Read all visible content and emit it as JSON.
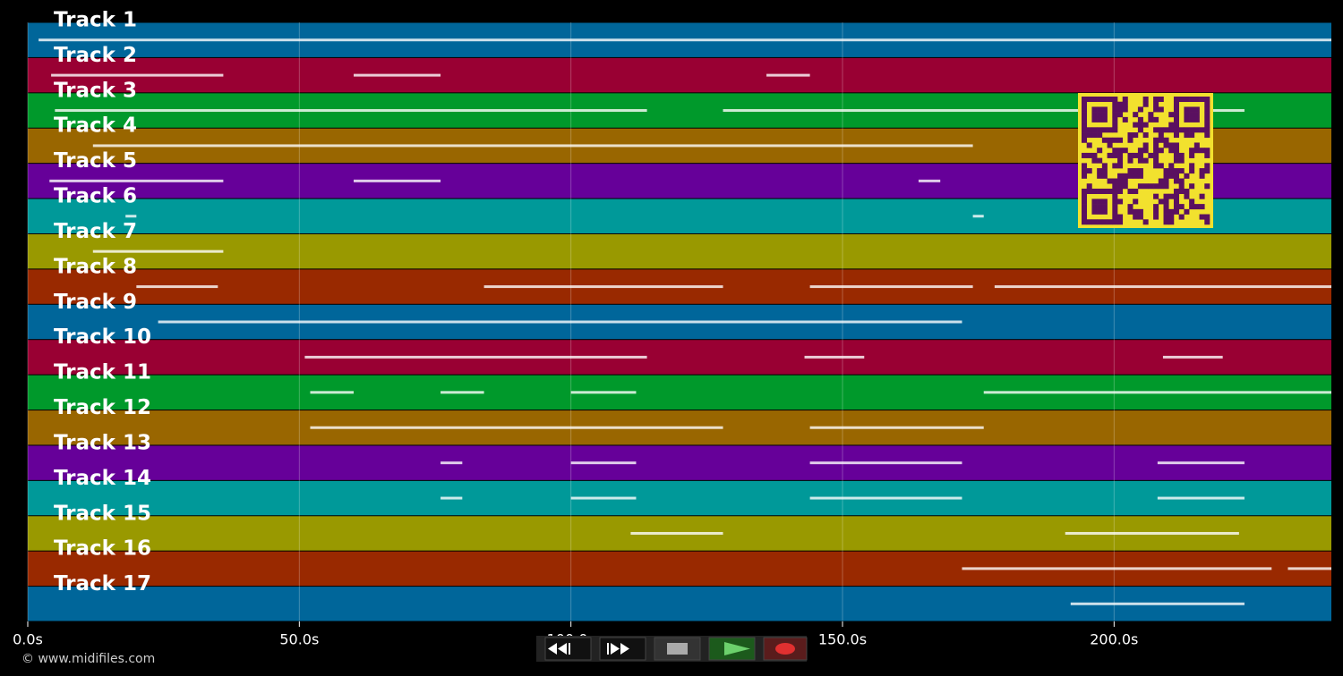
{
  "tracks": [
    {
      "name": "Track 1",
      "color": "#00669a",
      "notes": [
        [
          2,
          240
        ]
      ]
    },
    {
      "name": "Track 2",
      "color": "#990033",
      "notes": [
        [
          4.3,
          36
        ],
        [
          60,
          76
        ],
        [
          136,
          144
        ]
      ]
    },
    {
      "name": "Track 3",
      "color": "#00992b",
      "notes": [
        [
          5,
          114
        ],
        [
          128,
          224
        ]
      ]
    },
    {
      "name": "Track 4",
      "color": "#996600",
      "notes": [
        [
          12,
          174
        ]
      ]
    },
    {
      "name": "Track 5",
      "color": "#660099",
      "notes": [
        [
          4,
          36
        ],
        [
          60,
          76
        ],
        [
          164,
          168
        ]
      ]
    },
    {
      "name": "Track 6",
      "color": "#009999",
      "notes": [
        [
          18,
          20
        ],
        [
          174,
          176
        ]
      ]
    },
    {
      "name": "Track 7",
      "color": "#999900",
      "notes": [
        [
          12,
          36
        ]
      ]
    },
    {
      "name": "Track 8",
      "color": "#992900",
      "notes": [
        [
          20,
          35
        ],
        [
          84,
          128
        ],
        [
          144,
          174
        ],
        [
          178,
          240
        ]
      ]
    },
    {
      "name": "Track 9",
      "color": "#00669a",
      "notes": [
        [
          24,
          172
        ]
      ]
    },
    {
      "name": "Track 10",
      "color": "#990033",
      "notes": [
        [
          51,
          114
        ],
        [
          143,
          154
        ],
        [
          209,
          220
        ]
      ]
    },
    {
      "name": "Track 11",
      "color": "#00992b",
      "notes": [
        [
          52,
          60
        ],
        [
          76,
          84
        ],
        [
          100,
          112
        ],
        [
          176,
          240
        ]
      ]
    },
    {
      "name": "Track 12",
      "color": "#996600",
      "notes": [
        [
          52,
          128
        ],
        [
          144,
          176
        ]
      ]
    },
    {
      "name": "Track 13",
      "color": "#660099",
      "notes": [
        [
          76,
          80
        ],
        [
          100,
          112
        ],
        [
          144,
          172
        ],
        [
          208,
          224
        ]
      ]
    },
    {
      "name": "Track 14",
      "color": "#009999",
      "notes": [
        [
          76,
          80
        ],
        [
          100,
          112
        ],
        [
          144,
          172
        ],
        [
          208,
          224
        ]
      ]
    },
    {
      "name": "Track 15",
      "color": "#999900",
      "notes": [
        [
          111,
          128
        ],
        [
          191,
          223
        ]
      ]
    },
    {
      "name": "Track 16",
      "color": "#992900",
      "notes": [
        [
          172,
          229
        ],
        [
          232,
          240
        ]
      ]
    },
    {
      "name": "Track 17",
      "color": "#00669a",
      "notes": [
        [
          192,
          224
        ]
      ]
    }
  ],
  "xaxis": {
    "xlim": [
      0,
      240
    ],
    "xticks": [
      {
        "value": 0,
        "label": "0.0s"
      },
      {
        "value": 50,
        "label": "50.0s"
      },
      {
        "value": 100,
        "label": "100.0s"
      },
      {
        "value": 150,
        "label": "150.0s"
      },
      {
        "value": 200,
        "label": "200.0s"
      }
    ],
    "grid": true
  },
  "footer": "© www.midifiles.com"
}
